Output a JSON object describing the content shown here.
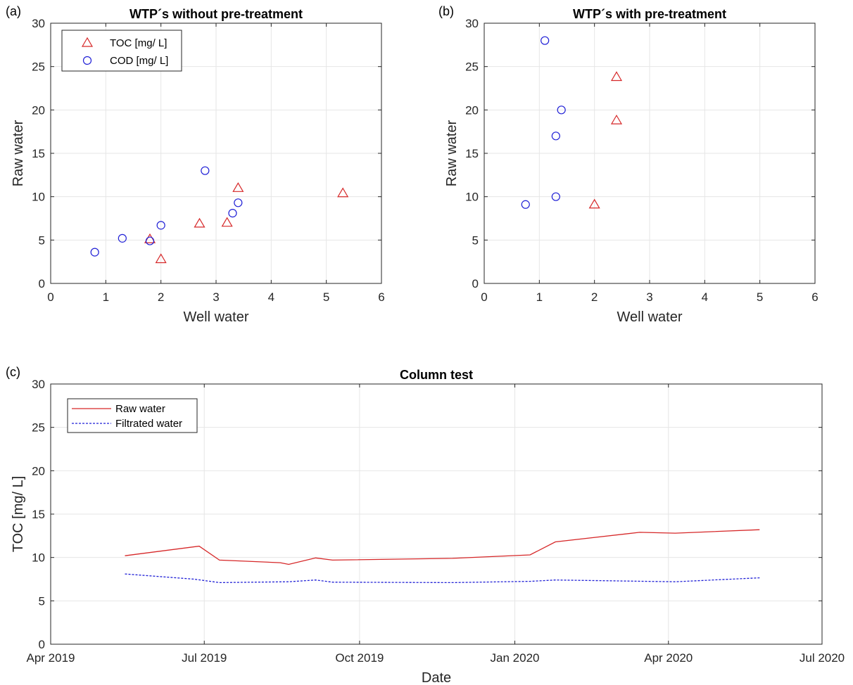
{
  "chart_data": [
    {
      "panel_label": "(a)",
      "type": "scatter",
      "title": "WTP´s without pre-treatment",
      "xlabel": "Well water",
      "ylabel": "Raw water",
      "xlim": [
        0,
        6
      ],
      "ylim": [
        0,
        30
      ],
      "xticks": [
        0,
        1,
        2,
        3,
        4,
        5,
        6
      ],
      "yticks": [
        0,
        5,
        10,
        15,
        20,
        25,
        30
      ],
      "grid": true,
      "legend_position": "top-left",
      "series": [
        {
          "name": "TOC [mg/ L]",
          "marker": "triangle",
          "color": "#d62728",
          "points": [
            [
              1.8,
              5.1
            ],
            [
              2.0,
              2.8
            ],
            [
              2.7,
              6.9
            ],
            [
              3.2,
              7.0
            ],
            [
              3.4,
              11.0
            ],
            [
              5.3,
              10.4
            ]
          ]
        },
        {
          "name": "COD [mg/ L]",
          "marker": "circle",
          "color": "#1f1fd6",
          "points": [
            [
              0.8,
              3.6
            ],
            [
              1.3,
              5.2
            ],
            [
              1.8,
              4.9
            ],
            [
              2.0,
              6.7
            ],
            [
              2.8,
              13.0
            ],
            [
              3.3,
              8.1
            ],
            [
              3.4,
              9.3
            ]
          ]
        }
      ]
    },
    {
      "panel_label": "(b)",
      "type": "scatter",
      "title": "WTP´s with pre-treatment",
      "xlabel": "Well water",
      "ylabel": "Raw water",
      "xlim": [
        0,
        6
      ],
      "ylim": [
        0,
        30
      ],
      "xticks": [
        0,
        1,
        2,
        3,
        4,
        5,
        6
      ],
      "yticks": [
        0,
        5,
        10,
        15,
        20,
        25,
        30
      ],
      "grid": true,
      "series": [
        {
          "marker": "triangle",
          "color": "#d62728",
          "points": [
            [
              2.0,
              9.1
            ],
            [
              2.4,
              18.8
            ],
            [
              2.4,
              23.8
            ]
          ]
        },
        {
          "marker": "circle",
          "color": "#1f1fd6",
          "points": [
            [
              0.75,
              9.1
            ],
            [
              1.1,
              28.0
            ],
            [
              1.3,
              17.0
            ],
            [
              1.3,
              10.0
            ],
            [
              1.4,
              20.0
            ]
          ]
        }
      ]
    },
    {
      "panel_label": "(c)",
      "type": "line",
      "title": "Column test",
      "xlabel": "Date",
      "ylabel": "TOC [mg/ L]",
      "xlim": [
        "2019-04-01",
        "2020-07-01"
      ],
      "ylim": [
        0,
        30
      ],
      "xticks": [
        "2019-04-01",
        "2019-07-01",
        "2019-10-01",
        "2020-01-01",
        "2020-04-01",
        "2020-07-01"
      ],
      "xticklabels": [
        "Apr 2019",
        "Jul 2019",
        "Oct 2019",
        "Jan 2020",
        "Apr 2020",
        "Jul 2020"
      ],
      "yticks": [
        0,
        5,
        10,
        15,
        20,
        25,
        30
      ],
      "grid": true,
      "legend_position": "top-left",
      "series": [
        {
          "name": "Raw water",
          "style": "solid",
          "color": "#d62728",
          "points": [
            [
              "2019-05-15",
              10.2
            ],
            [
              "2019-06-28",
              11.3
            ],
            [
              "2019-07-10",
              9.7
            ],
            [
              "2019-08-15",
              9.4
            ],
            [
              "2019-08-20",
              9.2
            ],
            [
              "2019-09-05",
              9.95
            ],
            [
              "2019-09-15",
              9.7
            ],
            [
              "2019-11-25",
              9.9
            ],
            [
              "2020-01-10",
              10.3
            ],
            [
              "2020-01-25",
              11.8
            ],
            [
              "2020-03-15",
              12.9
            ],
            [
              "2020-04-05",
              12.8
            ],
            [
              "2020-05-25",
              13.2
            ]
          ]
        },
        {
          "name": "Filtrated water",
          "style": "dashed",
          "color": "#1f1fd6",
          "points": [
            [
              "2019-05-15",
              8.1
            ],
            [
              "2019-06-25",
              7.5
            ],
            [
              "2019-07-10",
              7.1
            ],
            [
              "2019-08-20",
              7.2
            ],
            [
              "2019-09-05",
              7.4
            ],
            [
              "2019-09-15",
              7.15
            ],
            [
              "2019-11-25",
              7.1
            ],
            [
              "2020-01-10",
              7.25
            ],
            [
              "2020-01-25",
              7.4
            ],
            [
              "2020-04-05",
              7.2
            ],
            [
              "2020-05-25",
              7.65
            ]
          ]
        }
      ]
    }
  ]
}
